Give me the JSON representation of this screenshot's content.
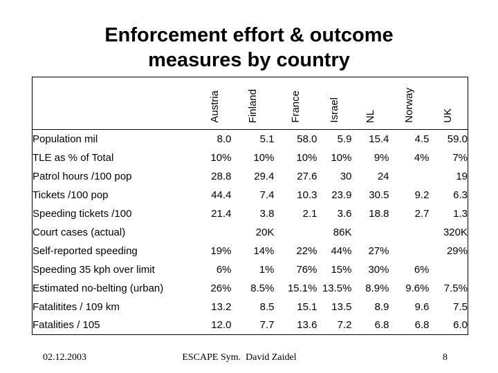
{
  "header": {
    "title_line1": "Enforcement effort & outcome",
    "title_line2": "measures by country"
  },
  "table": {
    "columns": [
      "Austria",
      "Finland",
      "France",
      "Israel",
      "NL",
      "Norway",
      "UK"
    ],
    "rows": [
      {
        "label": "Population mil",
        "values": [
          "8.0",
          "5.1",
          "58.0",
          "5.9",
          "15.4",
          "4.5",
          "59.0"
        ]
      },
      {
        "label": "TLE as % of Total",
        "values": [
          "10%",
          "10%",
          "10%",
          "10%",
          "9%",
          "4%",
          "7%"
        ]
      },
      {
        "label": "Patrol hours /100 pop",
        "values": [
          "28.8",
          "29.4",
          "27.6",
          "30",
          "24",
          "",
          "19"
        ]
      },
      {
        "label": "Tickets /100 pop",
        "values": [
          "44.4",
          "7.4",
          "10.3",
          "23.9",
          "30.5",
          "9.2",
          "6.3"
        ]
      },
      {
        "label": "Speeding tickets /100",
        "values": [
          "21.4",
          "3.8",
          "2.1",
          "3.6",
          "18.8",
          "2.7",
          "1.3"
        ]
      },
      {
        "label": "Court cases (actual)",
        "values": [
          "",
          "20K",
          "",
          "86K",
          "",
          "",
          "320K"
        ]
      },
      {
        "label": "Self-reported speeding",
        "values": [
          "19%",
          "14%",
          "22%",
          "44%",
          "27%",
          "",
          "29%"
        ]
      },
      {
        "label": "Speeding 35 kph over limit",
        "values": [
          "6%",
          "1%",
          "76%",
          "15%",
          "30%",
          "6%",
          ""
        ]
      },
      {
        "label": "Estimated no-belting (urban)",
        "values": [
          "26%",
          "8.5%",
          "15.1%",
          "13.5%",
          "8.9%",
          "9.6%",
          "7.5%"
        ]
      },
      {
        "label": "Fatalitites / 109 km",
        "values": [
          "13.2",
          "8.5",
          "15.1",
          "13.5",
          "8.9",
          "9.6",
          "7.5"
        ]
      },
      {
        "label": "Fatalities / 105",
        "values": [
          "12.0",
          "7.7",
          "13.6",
          "7.2",
          "6.8",
          "6.8",
          "6.0"
        ]
      }
    ]
  },
  "footer": {
    "date": "02.12.2003",
    "credit": "ESCAPE Sym.  David Zaidel",
    "page_number": "8"
  },
  "colors": {
    "background": "#ffffff",
    "text": "#000000",
    "border": "#000000"
  }
}
